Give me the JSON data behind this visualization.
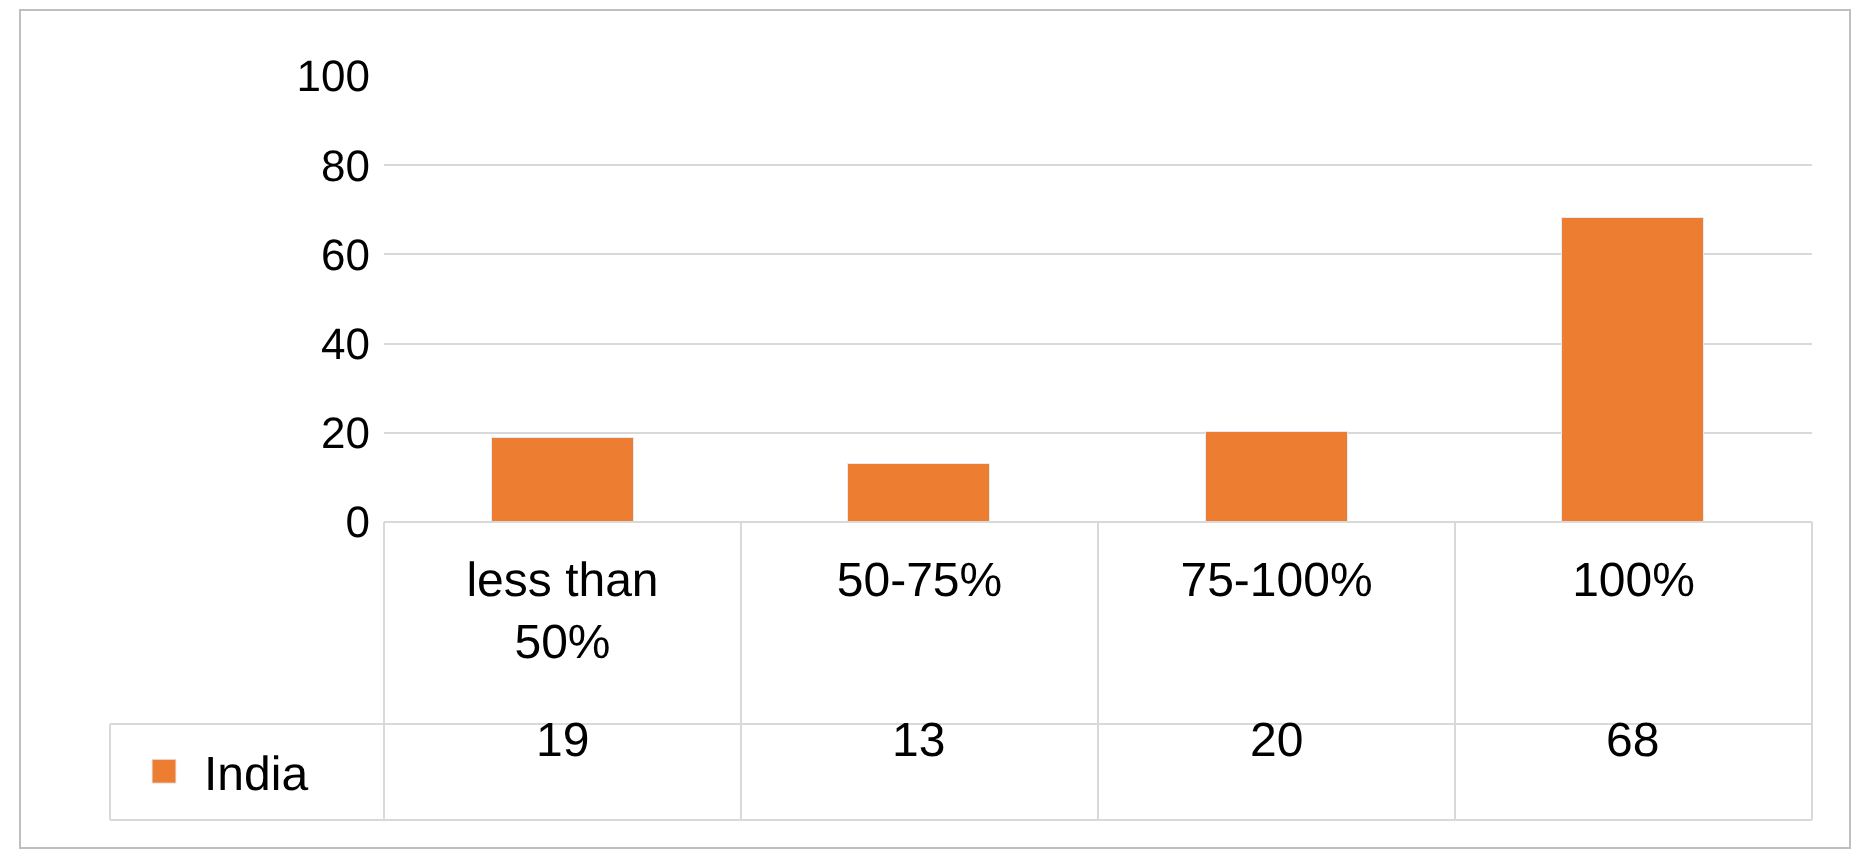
{
  "chart_data": {
    "type": "bar",
    "categories": [
      "less than 50%",
      "50-75%",
      "75-100%",
      "100%"
    ],
    "series": [
      {
        "name": "India",
        "color": "#ed7d31",
        "values": [
          19,
          13,
          20,
          68
        ]
      }
    ],
    "ylim": [
      0,
      100
    ],
    "yticks": [
      0,
      20,
      40,
      60,
      80,
      100
    ],
    "grid": "y",
    "data_labels": true,
    "legend": "bottom left"
  }
}
